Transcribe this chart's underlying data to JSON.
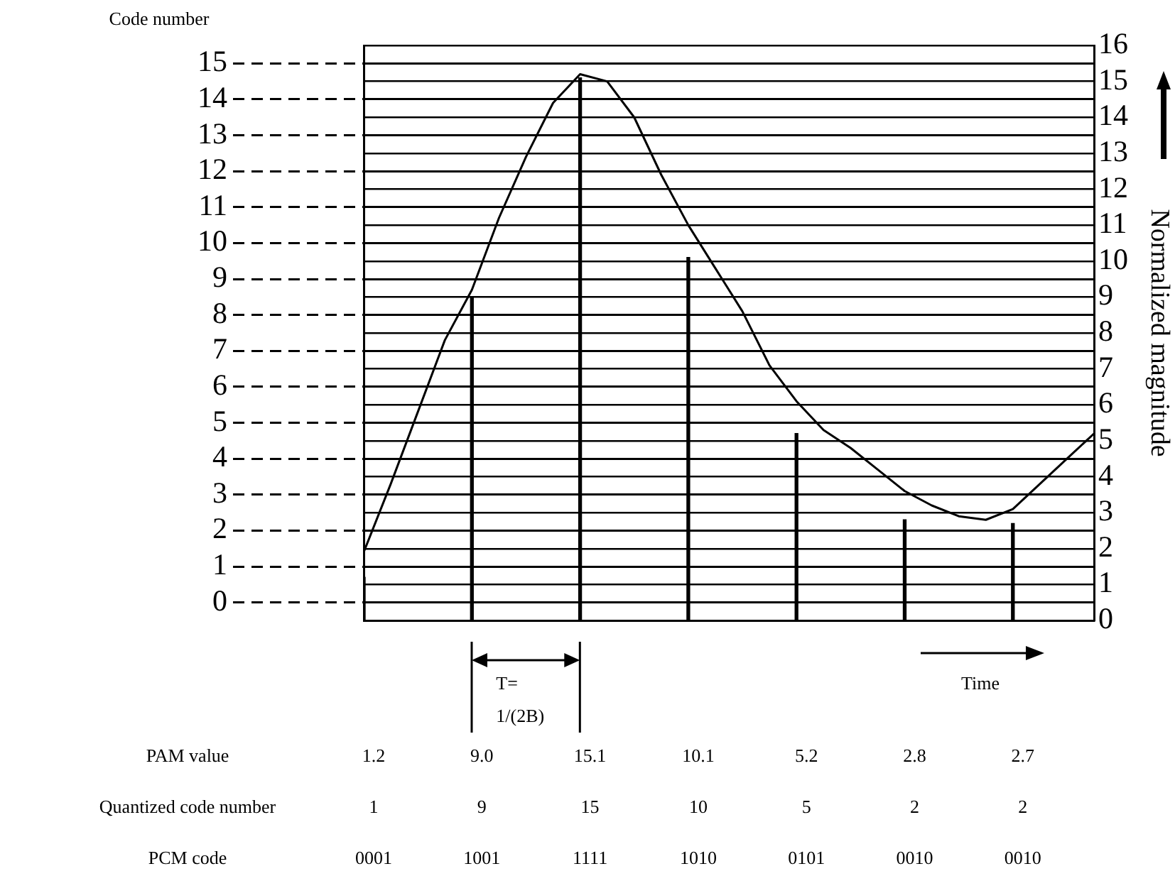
{
  "chart_data": {
    "type": "bar",
    "ylabel": "Code number",
    "y2label": "Normalized magnitude",
    "categories": [
      null,
      null,
      null,
      null,
      null,
      null,
      null,
      null,
      null,
      null,
      null,
      null,
      null,
      null,
      null,
      null,
      null,
      null,
      null,
      null,
      null,
      null,
      null,
      null,
      null,
      null,
      null,
      null
    ],
    "ylim": [
      -0.5,
      15.5
    ],
    "yticks": [
      0,
      1,
      2,
      3,
      4,
      5,
      6,
      7,
      8,
      9,
      10,
      11,
      12,
      13,
      14,
      15
    ],
    "y2lim": [
      0,
      16
    ],
    "y2ticks": [
      0,
      1,
      2,
      3,
      4,
      5,
      6,
      7,
      8,
      9,
      10,
      11,
      12,
      13,
      14,
      15,
      16
    ],
    "tick_labels": "y",
    "grid": true,
    "marker": "none",
    "annotations": [
      "T= 1/(2B)",
      "Time",
      "Quantized code number",
      "1",
      "9",
      "15",
      "10",
      "5",
      "2",
      "2",
      "PCM code",
      "0001",
      "1001",
      "1111",
      "1010",
      "0101",
      "0010",
      "0010"
    ],
    "series": [
      {
        "type": "line",
        "color": "#000000",
        "axis": "y2",
        "values": [
          1.9,
          3.8,
          5.8,
          7.8,
          9.2,
          11.2,
          12.9,
          14.4,
          15.2,
          15.0,
          14.0,
          12.4,
          11.0,
          9.8,
          8.6,
          7.1,
          6.1,
          5.3,
          4.8,
          4.2,
          3.6,
          3.2,
          2.9,
          2.8,
          3.1,
          3.8,
          4.5,
          5.2
        ]
      },
      {
        "name": "PAM value",
        "color": "#000000",
        "axis": "y2",
        "values": [
          1.2,
          null,
          null,
          null,
          9.0,
          null,
          null,
          null,
          15.1,
          null,
          null,
          null,
          10.1,
          null,
          null,
          null,
          5.2,
          null,
          null,
          null,
          2.8,
          null,
          null,
          null,
          2.7,
          null,
          null,
          null
        ],
        "value_labels": [
          "1.2",
          null,
          null,
          null,
          "9.0",
          null,
          null,
          null,
          "15.1",
          null,
          null,
          null,
          "10.1",
          null,
          null,
          null,
          "5.2",
          null,
          null,
          null,
          "2.8",
          null,
          null,
          null,
          "2.7",
          null,
          null,
          null
        ]
      }
    ]
  }
}
